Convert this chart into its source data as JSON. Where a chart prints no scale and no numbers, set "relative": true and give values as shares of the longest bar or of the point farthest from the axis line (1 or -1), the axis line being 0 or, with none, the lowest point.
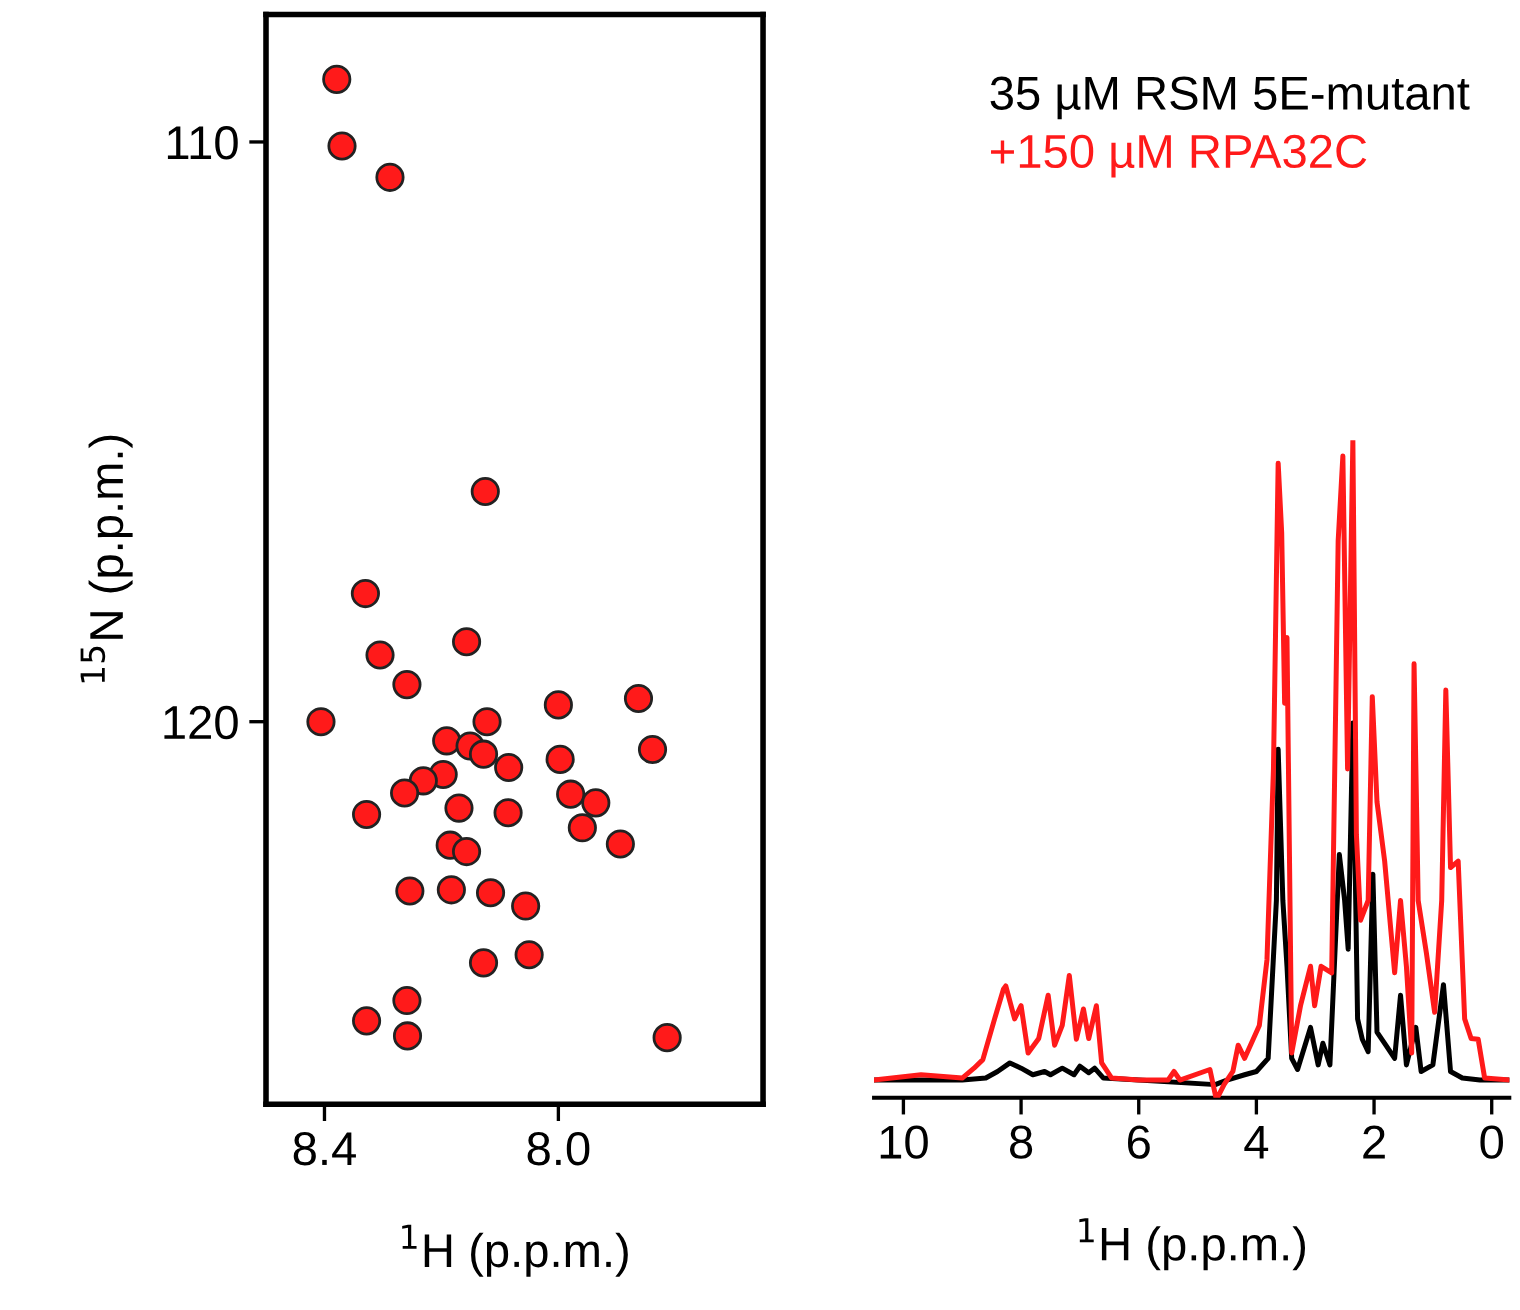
{
  "chart_data": [
    {
      "type": "scatter",
      "xlabel": "$^{1}$H (p.p.m.)",
      "ylabel": "$^{15}$N (p.p.m.)",
      "xlim": [
        8.5,
        7.65
      ],
      "ylim": [
        126.6,
        107.8
      ],
      "xticks": [
        8.4,
        {
          "value": 8.0,
          "label": "8.0"
        }
      ],
      "yticks": [
        110,
        120
      ],
      "marker": "circle",
      "series": [
        {
          "color": "#ff1a1a",
          "x": [
            8.379,
            8.37,
            8.288,
            8.125,
            8.33,
            8.157,
            8.305,
            8.259,
            8.406,
            8.122,
            8.0,
            7.863,
            7.839,
            8.191,
            8.151,
            8.128,
            8.085,
            7.997,
            8.197,
            8.231,
            8.263,
            8.328,
            8.17,
            8.086,
            7.979,
            7.936,
            7.959,
            7.894,
            8.185,
            8.157,
            8.254,
            8.183,
            8.116,
            8.056,
            8.128,
            8.05,
            8.259,
            8.328,
            8.258,
            7.814
          ],
          "values": [
            108.92,
            110.07,
            110.61,
            116.03,
            117.79,
            118.62,
            118.85,
            119.36,
            120.0,
            120.0,
            119.71,
            119.6,
            120.48,
            120.33,
            120.42,
            120.56,
            120.79,
            120.65,
            120.91,
            121.02,
            121.23,
            121.6,
            121.49,
            121.57,
            121.25,
            121.4,
            121.83,
            122.11,
            122.13,
            122.24,
            122.92,
            122.9,
            122.95,
            123.18,
            124.16,
            124.02,
            124.81,
            125.16,
            125.42,
            125.45
          ]
        }
      ]
    },
    {
      "type": "line",
      "xlabel": "$^{1}$H (p.p.m.)",
      "relative": true,
      "xlim": [
        10.5,
        -0.3
      ],
      "xticks": [
        10,
        8,
        6,
        4,
        2,
        0
      ],
      "tick_labels": "x",
      "legend": "top right",
      "line_style": "solid",
      "series": [
        {
          "name": "35 µM RSM 5E-mutant",
          "color": "#000000",
          "x": [
            10.5,
            9.0,
            8.6,
            8.4,
            8.19,
            8.0,
            7.8,
            7.6,
            7.5,
            7.3,
            7.1,
            7.0,
            6.85,
            6.75,
            6.6,
            6.0,
            4.7,
            4.5,
            4.2,
            4.0,
            3.8,
            3.66,
            3.63,
            3.55,
            3.48,
            3.4,
            3.3,
            3.08,
            2.95,
            2.87,
            2.75,
            2.59,
            2.5,
            2.44,
            2.36,
            2.28,
            2.2,
            2.1,
            2.02,
            1.95,
            1.8,
            1.65,
            1.55,
            1.45,
            1.29,
            1.2,
            1.0,
            0.82,
            0.7,
            0.5,
            0.2,
            -0.3
          ],
          "values": [
            0.027,
            0.027,
            0.03,
            0.04,
            0.053,
            0.045,
            0.035,
            0.04,
            0.035,
            0.045,
            0.035,
            0.048,
            0.038,
            0.045,
            0.03,
            0.027,
            0.02,
            0.027,
            0.035,
            0.04,
            0.06,
            0.3,
            0.53,
            0.3,
            0.2,
            0.06,
            0.043,
            0.107,
            0.05,
            0.083,
            0.05,
            0.37,
            0.3,
            0.226,
            0.57,
            0.12,
            0.089,
            0.07,
            0.34,
            0.1,
            0.08,
            0.06,
            0.156,
            0.05,
            0.107,
            0.04,
            0.05,
            0.172,
            0.04,
            0.03,
            0.027,
            0.027
          ]
        },
        {
          "name": "+150 µM RPA32C",
          "color": "#ff1a1a",
          "x": [
            10.5,
            9.7,
            9.0,
            8.8,
            8.65,
            8.45,
            8.3,
            8.26,
            8.11,
            8.0,
            7.88,
            7.7,
            7.54,
            7.43,
            7.3,
            7.18,
            7.06,
            6.94,
            6.85,
            6.72,
            6.63,
            6.46,
            6.0,
            5.5,
            5.4,
            5.3,
            4.79,
            4.68,
            4.55,
            4.4,
            4.31,
            4.2,
            3.95,
            3.82,
            3.71,
            3.63,
            3.57,
            3.52,
            3.48,
            3.4,
            3.25,
            3.08,
            3.01,
            2.9,
            2.72,
            2.61,
            2.53,
            2.45,
            2.36,
            2.3,
            2.23,
            2.1,
            2.03,
            1.95,
            1.82,
            1.65,
            1.55,
            1.45,
            1.36,
            1.32,
            1.25,
            1.11,
            0.97,
            0.85,
            0.78,
            0.7,
            0.57,
            0.46,
            0.35,
            0.23,
            0.12,
            -0.3
          ],
          "values": [
            0.027,
            0.035,
            0.03,
            0.045,
            0.058,
            0.12,
            0.165,
            0.17,
            0.12,
            0.14,
            0.068,
            0.09,
            0.156,
            0.08,
            0.11,
            0.186,
            0.089,
            0.135,
            0.09,
            0.14,
            0.053,
            0.03,
            0.027,
            0.027,
            0.04,
            0.027,
            0.043,
            -0.003,
            0.02,
            0.04,
            0.08,
            0.06,
            0.11,
            0.21,
            0.5,
            0.965,
            0.859,
            0.6,
            0.7,
            0.068,
            0.14,
            0.2,
            0.14,
            0.2,
            0.19,
            0.847,
            0.976,
            0.5,
            1.0,
            0.4,
            0.27,
            0.3,
            0.61,
            0.45,
            0.36,
            0.19,
            0.3,
            0.2,
            0.068,
            0.66,
            0.3,
            0.22,
            0.13,
            0.3,
            0.62,
            0.35,
            0.36,
            0.12,
            0.09,
            0.089,
            0.03,
            0.027
          ]
        }
      ]
    }
  ]
}
